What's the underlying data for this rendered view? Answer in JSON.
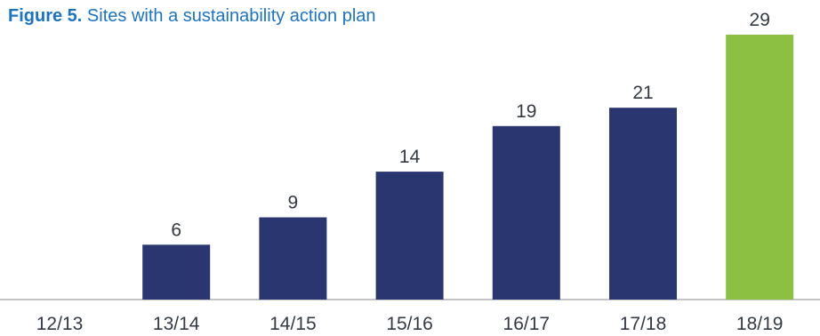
{
  "title": {
    "label": "Figure 5.",
    "text": "Sites with a sustainability action plan"
  },
  "colors": {
    "bar_default": "#293670",
    "bar_highlight": "#8cc043",
    "axis": "#888888",
    "label": "#333a44",
    "title": "#1a73c4"
  },
  "chart_data": {
    "type": "bar",
    "title": "Sites with a sustainability action plan",
    "xlabel": "",
    "ylabel": "",
    "categories": [
      "12/13",
      "13/14",
      "14/15",
      "15/16",
      "16/17",
      "17/18",
      "18/19"
    ],
    "values": [
      null,
      6,
      9,
      14,
      19,
      21,
      29
    ],
    "data_labels": [
      "",
      "6",
      "9",
      "14",
      "19",
      "21",
      "29"
    ],
    "highlight": "18/19",
    "ylim": [
      0,
      29
    ],
    "grid": false,
    "legend": "none"
  }
}
